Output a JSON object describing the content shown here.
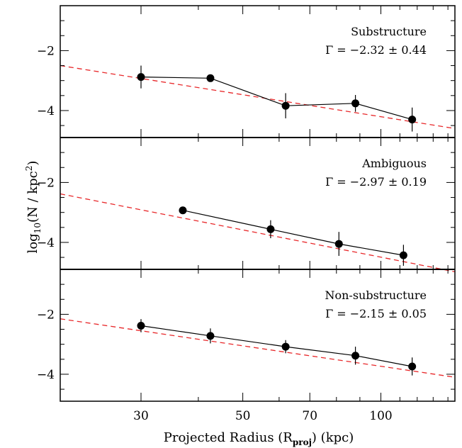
{
  "chart_data": {
    "type": "scatter",
    "xlabel": "Projected Radius (R_proj) (kpc)",
    "ylabel": "log10(N / kpc^2)",
    "xscale": "log",
    "xlim": [
      20,
      145
    ],
    "xticks": [
      30,
      50,
      70,
      100
    ],
    "xtick_labels": [
      "30",
      "50",
      "70",
      "100"
    ],
    "ylim": [
      -4.9,
      -0.5
    ],
    "yticks": [
      -2,
      -4
    ],
    "ytick_labels": [
      "−2",
      "−4"
    ],
    "grid": false,
    "colors": {
      "fit_line": "#e8282a",
      "points": "#000000"
    },
    "panels": [
      {
        "label": "Substructure",
        "gamma_text": "Γ = −2.32 ± 0.44",
        "points": [
          {
            "x": 30,
            "y": -2.88,
            "err": 0.38
          },
          {
            "x": 42.5,
            "y": -2.92,
            "err": 0.12
          },
          {
            "x": 62,
            "y": -3.84,
            "err": 0.42
          },
          {
            "x": 88,
            "y": -3.76,
            "err": 0.28
          },
          {
            "x": 117,
            "y": -4.3,
            "err": 0.4
          }
        ],
        "fit": {
          "x": [
            20,
            145
          ],
          "y": [
            -2.5,
            -4.6
          ]
        }
      },
      {
        "label": "Ambiguous",
        "gamma_text": "Γ = −2.97 ± 0.19",
        "points": [
          {
            "x": 37,
            "y": -2.93,
            "err": 0.12
          },
          {
            "x": 57.5,
            "y": -3.56,
            "err": 0.3
          },
          {
            "x": 81,
            "y": -4.05,
            "err": 0.4
          },
          {
            "x": 112,
            "y": -4.43,
            "err": 0.35
          }
        ],
        "fit": {
          "x": [
            20,
            145
          ],
          "y": [
            -2.38,
            -4.98
          ]
        }
      },
      {
        "label": "Non-substructure",
        "gamma_text": "Γ = −2.15 ± 0.05",
        "points": [
          {
            "x": 30,
            "y": -2.38,
            "err": 0.22
          },
          {
            "x": 42.5,
            "y": -2.72,
            "err": 0.25
          },
          {
            "x": 62,
            "y": -3.08,
            "err": 0.22
          },
          {
            "x": 88,
            "y": -3.38,
            "err": 0.3
          },
          {
            "x": 117,
            "y": -3.74,
            "err": 0.3
          }
        ],
        "fit": {
          "x": [
            20,
            145
          ],
          "y": [
            -2.15,
            -4.1
          ]
        }
      }
    ]
  }
}
